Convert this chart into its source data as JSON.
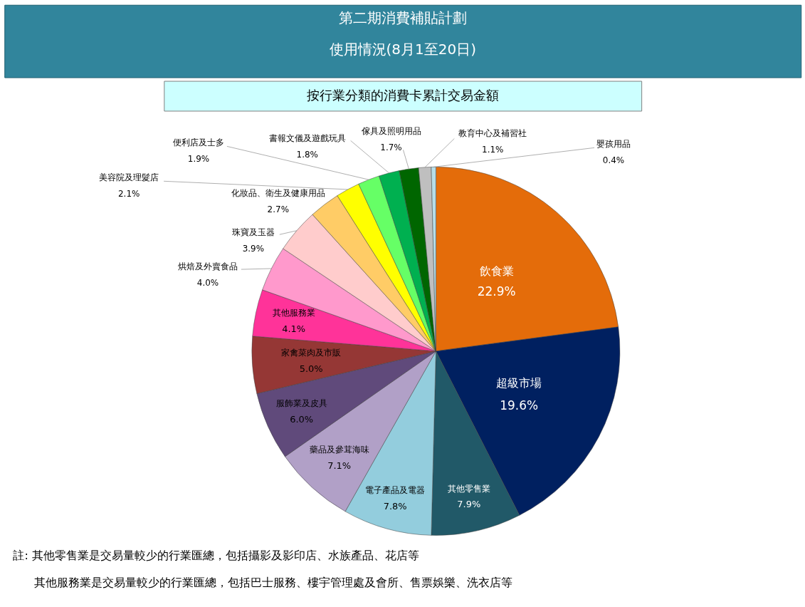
{
  "chart_data": {
    "type": "pie",
    "title": "第二期消費補貼計劃",
    "subtitle": "使用情況(8月1至20日)",
    "categories": [
      "飲食業",
      "超級市場",
      "其他零售業",
      "電子產品及電器",
      "藥品及參茸海味",
      "服飾業及皮具",
      "家禽菜肉及市販",
      "其他服務業",
      "烘焙及外賣食品",
      "珠寶及玉器",
      "化妝品、衛生及健康用品",
      "美容院及理髮店",
      "便利店及士多",
      "書報文儀及遊戲玩具",
      "傢具及照明用品",
      "教育中心及補習社",
      "嬰孩用品"
    ],
    "values": [
      22.9,
      19.6,
      7.9,
      7.8,
      7.1,
      6.0,
      5.0,
      4.1,
      4.0,
      3.9,
      2.7,
      2.1,
      1.9,
      1.8,
      1.7,
      1.1,
      0.4
    ],
    "value_labels": [
      "22.9%",
      "19.6%",
      "7.9%",
      "7.8%",
      "7.1%",
      "6.0%",
      "5.0%",
      "4.1%",
      "4.0%",
      "3.9%",
      "2.7%",
      "2.1%",
      "1.9%",
      "1.8%",
      "1.7%",
      "1.1%",
      "0.4%"
    ],
    "colors": [
      "#e46c0a",
      "#002060",
      "#215968",
      "#93cddd",
      "#b1a0c7",
      "#604a7b",
      "#953735",
      "#ff3399",
      "#ff99cc",
      "#ffcccc",
      "#ffcc66",
      "#ffff00",
      "#66ff66",
      "#00b050",
      "#006600",
      "#bfbfbf",
      "#b7dee8"
    ],
    "annotations": [
      "按行業分類的消費卡累計交易金額",
      "註: 其他零售業是交易量較少的行業匯總，包括攝影及影印店、水族產品、花店等",
      "其他服務業是交易量較少的行業匯總，包括巴士服務、樓宇管理處及會所、售票娛樂、洗衣店等"
    ]
  }
}
